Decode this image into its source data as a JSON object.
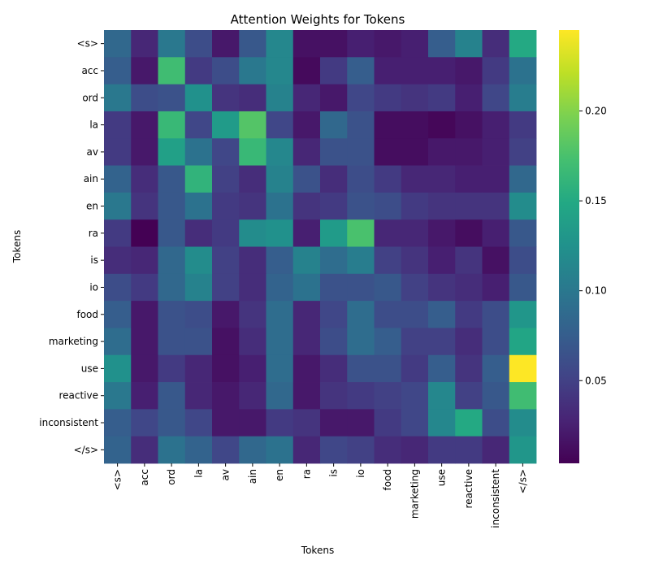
{
  "chart_data": {
    "type": "heatmap",
    "title": "Attention Weights for Tokens",
    "xlabel": "Tokens",
    "ylabel": "Tokens",
    "x_tokens": [
      "<s>",
      "acc",
      "ord",
      "la",
      "av",
      "ain",
      "en",
      "ra",
      "is",
      "io",
      "food",
      "marketing",
      "use",
      "reactive",
      "inconsistent",
      "</s>"
    ],
    "y_tokens": [
      "<s>",
      "acc",
      "ord",
      "la",
      "av",
      "ain",
      "en",
      "ra",
      "is",
      "io",
      "food",
      "marketing",
      "use",
      "reactive",
      "inconsistent",
      "</s>"
    ],
    "colormap": "viridis",
    "vmin": 0.004,
    "vmax": 0.245,
    "colorbar_ticks": [
      0.05,
      0.1,
      0.15,
      0.2
    ],
    "colorbar_tick_labels": [
      "0.05",
      "0.10",
      "0.15",
      "0.20"
    ],
    "values": [
      [
        0.085,
        0.03,
        0.1,
        0.06,
        0.02,
        0.07,
        0.115,
        0.015,
        0.015,
        0.025,
        0.02,
        0.025,
        0.075,
        0.11,
        0.035,
        0.15
      ],
      [
        0.075,
        0.02,
        0.17,
        0.045,
        0.06,
        0.1,
        0.115,
        0.01,
        0.045,
        0.075,
        0.025,
        0.025,
        0.025,
        0.02,
        0.045,
        0.095
      ],
      [
        0.1,
        0.06,
        0.065,
        0.125,
        0.04,
        0.035,
        0.11,
        0.03,
        0.02,
        0.055,
        0.045,
        0.04,
        0.045,
        0.025,
        0.055,
        0.105
      ],
      [
        0.045,
        0.02,
        0.165,
        0.055,
        0.135,
        0.18,
        0.055,
        0.02,
        0.085,
        0.065,
        0.012,
        0.012,
        0.008,
        0.015,
        0.025,
        0.045
      ],
      [
        0.045,
        0.02,
        0.14,
        0.095,
        0.055,
        0.165,
        0.115,
        0.03,
        0.065,
        0.065,
        0.012,
        0.012,
        0.02,
        0.02,
        0.025,
        0.05
      ],
      [
        0.08,
        0.035,
        0.07,
        0.16,
        0.05,
        0.035,
        0.11,
        0.065,
        0.035,
        0.06,
        0.045,
        0.03,
        0.03,
        0.025,
        0.025,
        0.085
      ],
      [
        0.1,
        0.04,
        0.07,
        0.095,
        0.045,
        0.04,
        0.095,
        0.04,
        0.045,
        0.065,
        0.06,
        0.045,
        0.04,
        0.04,
        0.04,
        0.12
      ],
      [
        0.045,
        0.004,
        0.07,
        0.035,
        0.045,
        0.12,
        0.125,
        0.025,
        0.135,
        0.175,
        0.03,
        0.03,
        0.02,
        0.012,
        0.025,
        0.07
      ],
      [
        0.035,
        0.03,
        0.085,
        0.12,
        0.05,
        0.035,
        0.075,
        0.11,
        0.09,
        0.105,
        0.05,
        0.04,
        0.025,
        0.04,
        0.015,
        0.06
      ],
      [
        0.06,
        0.045,
        0.085,
        0.11,
        0.05,
        0.035,
        0.08,
        0.095,
        0.065,
        0.065,
        0.07,
        0.05,
        0.04,
        0.035,
        0.025,
        0.07
      ],
      [
        0.075,
        0.02,
        0.065,
        0.06,
        0.02,
        0.04,
        0.09,
        0.03,
        0.055,
        0.09,
        0.06,
        0.06,
        0.075,
        0.045,
        0.06,
        0.13
      ],
      [
        0.09,
        0.02,
        0.065,
        0.065,
        0.015,
        0.035,
        0.09,
        0.03,
        0.06,
        0.09,
        0.075,
        0.05,
        0.05,
        0.035,
        0.06,
        0.145
      ],
      [
        0.125,
        0.02,
        0.045,
        0.03,
        0.015,
        0.025,
        0.09,
        0.02,
        0.035,
        0.065,
        0.065,
        0.045,
        0.075,
        0.04,
        0.075,
        0.245
      ],
      [
        0.1,
        0.025,
        0.07,
        0.03,
        0.02,
        0.03,
        0.085,
        0.02,
        0.04,
        0.045,
        0.05,
        0.055,
        0.115,
        0.05,
        0.07,
        0.17
      ],
      [
        0.075,
        0.055,
        0.07,
        0.055,
        0.02,
        0.02,
        0.045,
        0.04,
        0.02,
        0.02,
        0.045,
        0.055,
        0.115,
        0.15,
        0.06,
        0.12
      ],
      [
        0.08,
        0.035,
        0.095,
        0.08,
        0.055,
        0.085,
        0.095,
        0.03,
        0.055,
        0.05,
        0.035,
        0.03,
        0.045,
        0.045,
        0.03,
        0.13
      ]
    ]
  }
}
